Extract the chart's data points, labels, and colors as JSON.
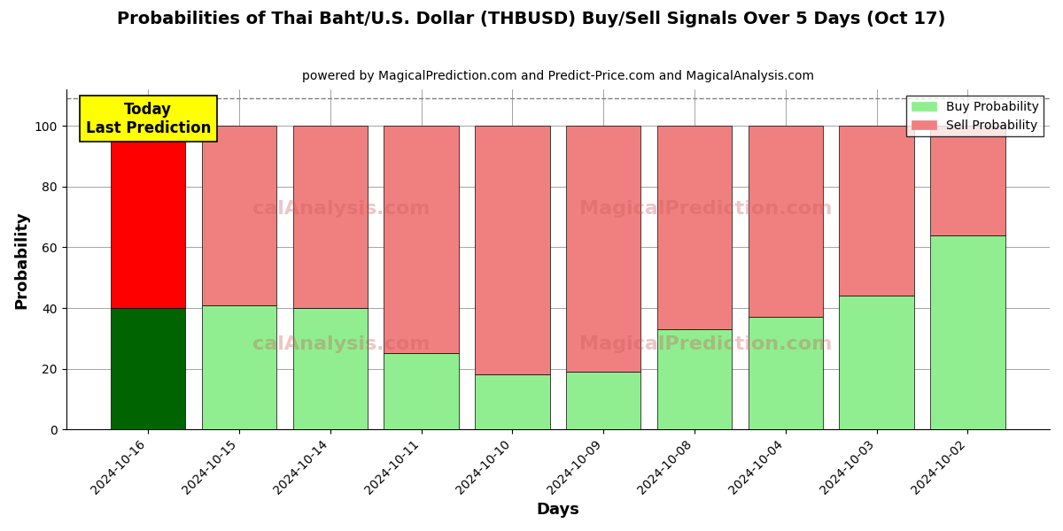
{
  "title": "Probabilities of Thai Baht/U.S. Dollar (THBUSD) Buy/Sell Signals Over 5 Days (Oct 17)",
  "subtitle": "powered by MagicalPrediction.com and Predict-Price.com and MagicalAnalysis.com",
  "xlabel": "Days",
  "ylabel": "Probability",
  "dates": [
    "2024-10-16",
    "2024-10-15",
    "2024-10-14",
    "2024-10-11",
    "2024-10-10",
    "2024-10-09",
    "2024-10-08",
    "2024-10-04",
    "2024-10-03",
    "2024-10-02"
  ],
  "buy_values": [
    40,
    41,
    40,
    25,
    18,
    19,
    33,
    37,
    44,
    64
  ],
  "sell_values": [
    60,
    59,
    60,
    75,
    82,
    81,
    67,
    63,
    56,
    36
  ],
  "today_buy_color": "#006400",
  "today_sell_color": "#FF0000",
  "buy_color": "#90EE90",
  "sell_color": "#F08080",
  "today_label_bg": "#FFFF00",
  "today_label_text1": "Today",
  "today_label_text2": "Last Prediction",
  "legend_buy": "Buy Probability",
  "legend_sell": "Sell Probability",
  "ylim": [
    0,
    112
  ],
  "dashed_line_y": 109,
  "watermark_row1": [
    "calAnalysis.com",
    "MagicalPrediction.com"
  ],
  "watermark_row2": [
    "calAnalysis.com",
    "MagicalPrediction.com"
  ],
  "figsize": [
    12,
    6
  ],
  "dpi": 100
}
